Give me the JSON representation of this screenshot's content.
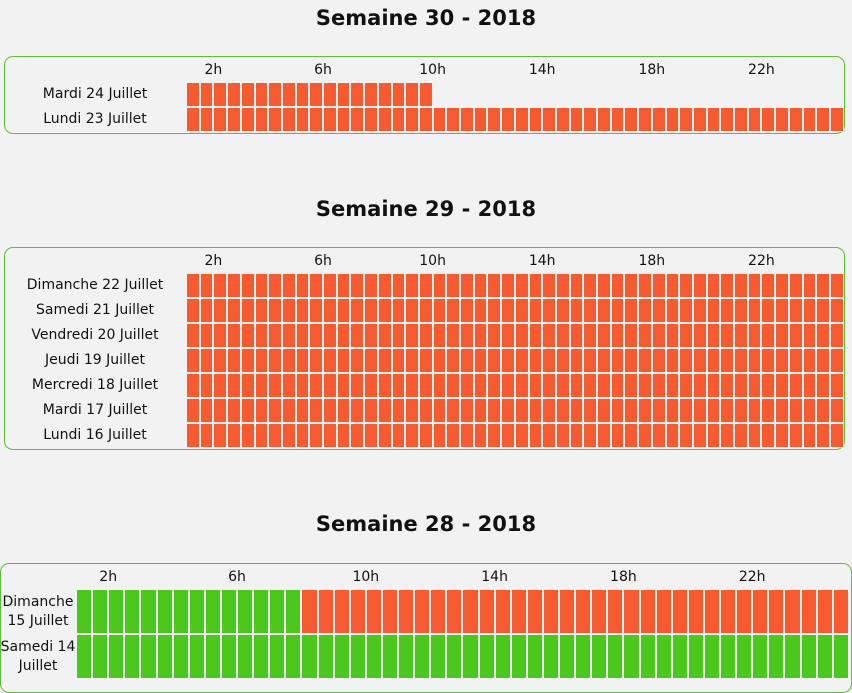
{
  "colors": {
    "busy": "#f55a30",
    "free": "#4cc71e",
    "border": "#5fbf3a",
    "background": "#f2f2f2"
  },
  "hour_labels": [
    "2h",
    "6h",
    "10h",
    "14h",
    "18h",
    "22h"
  ],
  "weeks": [
    {
      "title": "Semaine 30 - 2018",
      "days": [
        {
          "label": "Mardi 24 Juillet",
          "cells": "oooooooooooooooooo"
        },
        {
          "label": "Lundi 23 Juillet",
          "cells": "oooooooooooooooooooooooooooooooooooooooooooooooo"
        }
      ]
    },
    {
      "title": "Semaine 29 - 2018",
      "days": [
        {
          "label": "Dimanche 22 Juillet",
          "cells": "oooooooooooooooooooooooooooooooooooooooooooooooo"
        },
        {
          "label": "Samedi 21 Juillet",
          "cells": "oooooooooooooooooooooooooooooooooooooooooooooooo"
        },
        {
          "label": "Vendredi 20 Juillet",
          "cells": "oooooooooooooooooooooooooooooooooooooooooooooooo"
        },
        {
          "label": "Jeudi 19 Juillet",
          "cells": "oooooooooooooooooooooooooooooooooooooooooooooooo"
        },
        {
          "label": "Mercredi 18 Juillet",
          "cells": "oooooooooooooooooooooooooooooooooooooooooooooooo"
        },
        {
          "label": "Mardi 17 Juillet",
          "cells": "oooooooooooooooooooooooooooooooooooooooooooooooo"
        },
        {
          "label": "Lundi 16 Juillet",
          "cells": "oooooooooooooooooooooooooooooooooooooooooooooooo"
        }
      ]
    },
    {
      "title": "Semaine 28 - 2018",
      "days": [
        {
          "label": "Dimanche 15 Juillet",
          "cells": "ggggggggggggggoooooooooooooooooooooooooooooooooo"
        },
        {
          "label": "Samedi 14 Juillet",
          "cells": "gggggggggggggggggggggggggggggggggggggggggggggggg"
        }
      ]
    }
  ]
}
